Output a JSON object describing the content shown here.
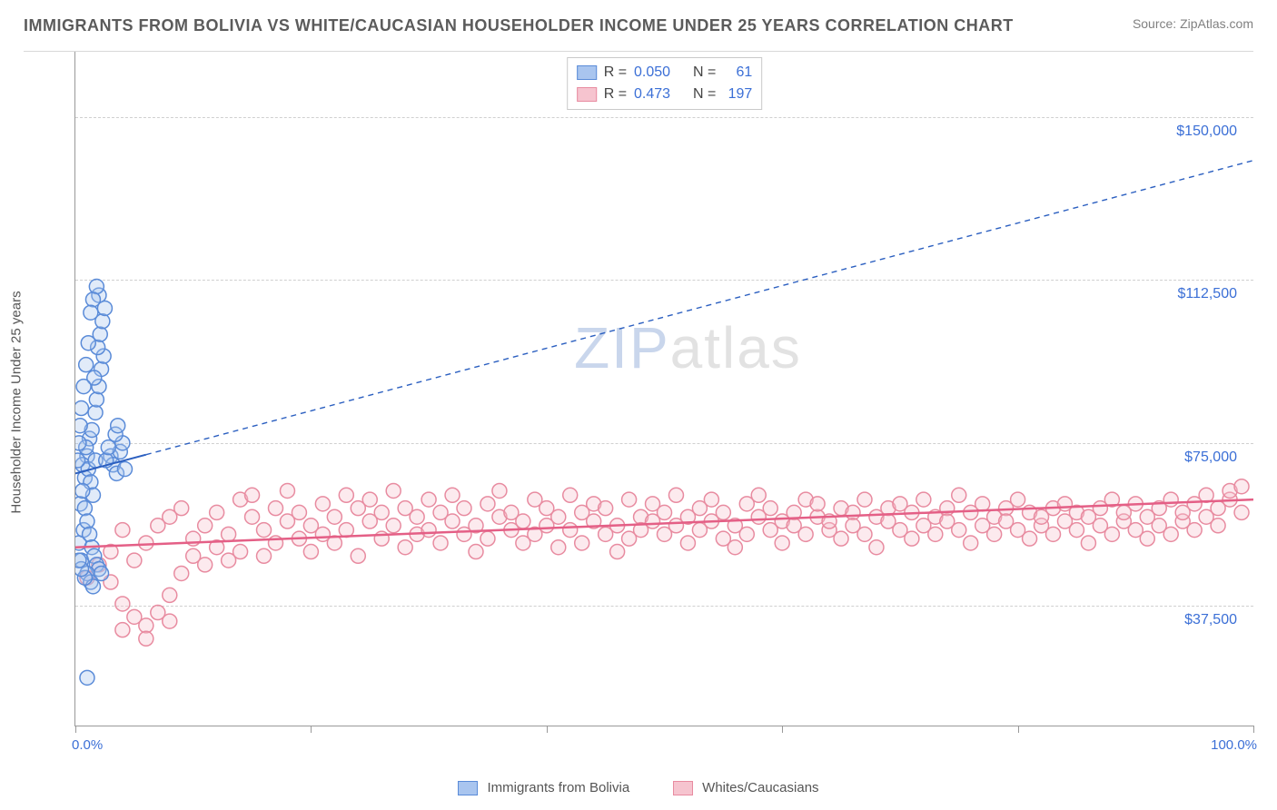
{
  "title": "IMMIGRANTS FROM BOLIVIA VS WHITE/CAUCASIAN HOUSEHOLDER INCOME UNDER 25 YEARS CORRELATION CHART",
  "source_label": "Source: ",
  "source_name": "ZipAtlas.com",
  "watermark_a": "ZIP",
  "watermark_b": "atlas",
  "chart": {
    "type": "scatter",
    "ylabel": "Householder Income Under 25 years",
    "xlim": [
      0,
      100
    ],
    "ylim": [
      10000,
      165000
    ],
    "yticks": [
      37500,
      75000,
      112500,
      150000
    ],
    "ytick_labels": [
      "$37,500",
      "$75,000",
      "$112,500",
      "$150,000"
    ],
    "xticks": [
      0,
      20,
      40,
      60,
      80,
      100
    ],
    "x_axis_left_label": "0.0%",
    "x_axis_right_label": "100.0%",
    "background_color": "#ffffff",
    "grid_color": "#d0d0d0",
    "marker_radius": 8,
    "marker_stroke_width": 1.5,
    "marker_fill_opacity": 0.35,
    "axis_label_color": "#3b6fd6",
    "series": [
      {
        "id": "bolivia",
        "name": "Immigrants from Bolivia",
        "fill": "#a9c5ef",
        "stroke": "#5a8bd8",
        "R": "0.050",
        "N": "61",
        "trend": {
          "x1": 0,
          "y1": 68000,
          "x2": 100,
          "y2": 140000,
          "solid_until_x": 6,
          "color": "#2b5fc0",
          "width": 2,
          "dash": "6 5"
        },
        "points": [
          [
            0.3,
            52000
          ],
          [
            0.5,
            48000
          ],
          [
            0.7,
            55000
          ],
          [
            0.4,
            61000
          ],
          [
            0.8,
            67000
          ],
          [
            1.0,
            72000
          ],
          [
            1.2,
            76000
          ],
          [
            0.6,
            70000
          ],
          [
            0.9,
            74000
          ],
          [
            1.1,
            69000
          ],
          [
            1.3,
            66000
          ],
          [
            1.5,
            63000
          ],
          [
            1.4,
            78000
          ],
          [
            1.7,
            82000
          ],
          [
            1.8,
            85000
          ],
          [
            2.0,
            88000
          ],
          [
            2.2,
            92000
          ],
          [
            2.4,
            95000
          ],
          [
            1.6,
            90000
          ],
          [
            1.9,
            97000
          ],
          [
            2.1,
            100000
          ],
          [
            2.3,
            103000
          ],
          [
            2.5,
            106000
          ],
          [
            2.0,
            109000
          ],
          [
            1.8,
            111000
          ],
          [
            1.5,
            108000
          ],
          [
            1.3,
            105000
          ],
          [
            1.1,
            98000
          ],
          [
            0.9,
            93000
          ],
          [
            0.7,
            88000
          ],
          [
            0.5,
            83000
          ],
          [
            0.4,
            79000
          ],
          [
            0.3,
            75000
          ],
          [
            0.2,
            71000
          ],
          [
            0.6,
            64000
          ],
          [
            0.8,
            60000
          ],
          [
            1.0,
            57000
          ],
          [
            1.2,
            54000
          ],
          [
            1.4,
            51000
          ],
          [
            1.6,
            49000
          ],
          [
            1.8,
            47000
          ],
          [
            2.0,
            46000
          ],
          [
            2.2,
            45000
          ],
          [
            1.0,
            45000
          ],
          [
            1.3,
            43000
          ],
          [
            1.5,
            42000
          ],
          [
            0.8,
            44000
          ],
          [
            0.5,
            46000
          ],
          [
            0.3,
            48000
          ],
          [
            3.0,
            72000
          ],
          [
            3.2,
            70000
          ],
          [
            3.5,
            68000
          ],
          [
            3.8,
            73000
          ],
          [
            4.0,
            75000
          ],
          [
            4.2,
            69000
          ],
          [
            1.0,
            21000
          ],
          [
            1.7,
            71000
          ],
          [
            2.6,
            71000
          ],
          [
            2.8,
            74000
          ],
          [
            3.4,
            77000
          ],
          [
            3.6,
            79000
          ]
        ]
      },
      {
        "id": "white",
        "name": "Whites/Caucasians",
        "fill": "#f6c4cf",
        "stroke": "#e88ba0",
        "R": "0.473",
        "N": "197",
        "trend": {
          "x1": 0,
          "y1": 51000,
          "x2": 100,
          "y2": 62000,
          "solid_until_x": 100,
          "color": "#e45f86",
          "width": 2.5,
          "dash": ""
        },
        "points": [
          [
            1,
            44000
          ],
          [
            2,
            47000
          ],
          [
            3,
            50000
          ],
          [
            3,
            43000
          ],
          [
            4,
            38000
          ],
          [
            4,
            55000
          ],
          [
            5,
            35000
          ],
          [
            5,
            48000
          ],
          [
            6,
            33000
          ],
          [
            6,
            52000
          ],
          [
            7,
            36000
          ],
          [
            7,
            56000
          ],
          [
            8,
            40000
          ],
          [
            8,
            58000
          ],
          [
            9,
            45000
          ],
          [
            9,
            60000
          ],
          [
            10,
            49000
          ],
          [
            10,
            53000
          ],
          [
            11,
            56000
          ],
          [
            11,
            47000
          ],
          [
            12,
            51000
          ],
          [
            12,
            59000
          ],
          [
            13,
            54000
          ],
          [
            13,
            48000
          ],
          [
            14,
            62000
          ],
          [
            14,
            50000
          ],
          [
            15,
            58000
          ],
          [
            15,
            63000
          ],
          [
            16,
            55000
          ],
          [
            16,
            49000
          ],
          [
            17,
            60000
          ],
          [
            17,
            52000
          ],
          [
            18,
            57000
          ],
          [
            18,
            64000
          ],
          [
            19,
            53000
          ],
          [
            19,
            59000
          ],
          [
            20,
            56000
          ],
          [
            20,
            50000
          ],
          [
            21,
            61000
          ],
          [
            21,
            54000
          ],
          [
            22,
            58000
          ],
          [
            22,
            52000
          ],
          [
            23,
            63000
          ],
          [
            23,
            55000
          ],
          [
            24,
            60000
          ],
          [
            24,
            49000
          ],
          [
            25,
            57000
          ],
          [
            25,
            62000
          ],
          [
            26,
            53000
          ],
          [
            26,
            59000
          ],
          [
            27,
            56000
          ],
          [
            27,
            64000
          ],
          [
            28,
            51000
          ],
          [
            28,
            60000
          ],
          [
            29,
            58000
          ],
          [
            29,
            54000
          ],
          [
            30,
            62000
          ],
          [
            30,
            55000
          ],
          [
            31,
            59000
          ],
          [
            31,
            52000
          ],
          [
            32,
            57000
          ],
          [
            32,
            63000
          ],
          [
            33,
            54000
          ],
          [
            33,
            60000
          ],
          [
            34,
            56000
          ],
          [
            34,
            50000
          ],
          [
            35,
            61000
          ],
          [
            35,
            53000
          ],
          [
            36,
            58000
          ],
          [
            36,
            64000
          ],
          [
            37,
            55000
          ],
          [
            37,
            59000
          ],
          [
            38,
            52000
          ],
          [
            38,
            57000
          ],
          [
            39,
            62000
          ],
          [
            39,
            54000
          ],
          [
            40,
            60000
          ],
          [
            40,
            56000
          ],
          [
            41,
            51000
          ],
          [
            41,
            58000
          ],
          [
            42,
            63000
          ],
          [
            42,
            55000
          ],
          [
            43,
            59000
          ],
          [
            43,
            52000
          ],
          [
            44,
            57000
          ],
          [
            44,
            61000
          ],
          [
            45,
            54000
          ],
          [
            45,
            60000
          ],
          [
            46,
            56000
          ],
          [
            46,
            50000
          ],
          [
            47,
            62000
          ],
          [
            47,
            53000
          ],
          [
            48,
            58000
          ],
          [
            48,
            55000
          ],
          [
            49,
            61000
          ],
          [
            49,
            57000
          ],
          [
            50,
            54000
          ],
          [
            50,
            59000
          ],
          [
            51,
            56000
          ],
          [
            51,
            63000
          ],
          [
            52,
            52000
          ],
          [
            52,
            58000
          ],
          [
            53,
            60000
          ],
          [
            53,
            55000
          ],
          [
            54,
            57000
          ],
          [
            54,
            62000
          ],
          [
            55,
            53000
          ],
          [
            55,
            59000
          ],
          [
            56,
            56000
          ],
          [
            56,
            51000
          ],
          [
            57,
            61000
          ],
          [
            57,
            54000
          ],
          [
            58,
            58000
          ],
          [
            58,
            63000
          ],
          [
            59,
            55000
          ],
          [
            59,
            60000
          ],
          [
            60,
            57000
          ],
          [
            60,
            52000
          ],
          [
            61,
            59000
          ],
          [
            61,
            56000
          ],
          [
            62,
            62000
          ],
          [
            62,
            54000
          ],
          [
            63,
            58000
          ],
          [
            63,
            61000
          ],
          [
            64,
            55000
          ],
          [
            64,
            57000
          ],
          [
            65,
            60000
          ],
          [
            65,
            53000
          ],
          [
            66,
            59000
          ],
          [
            66,
            56000
          ],
          [
            67,
            62000
          ],
          [
            67,
            54000
          ],
          [
            68,
            58000
          ],
          [
            68,
            51000
          ],
          [
            69,
            60000
          ],
          [
            69,
            57000
          ],
          [
            70,
            55000
          ],
          [
            70,
            61000
          ],
          [
            71,
            53000
          ],
          [
            71,
            59000
          ],
          [
            72,
            56000
          ],
          [
            72,
            62000
          ],
          [
            73,
            54000
          ],
          [
            73,
            58000
          ],
          [
            74,
            60000
          ],
          [
            74,
            57000
          ],
          [
            75,
            55000
          ],
          [
            75,
            63000
          ],
          [
            76,
            52000
          ],
          [
            76,
            59000
          ],
          [
            77,
            56000
          ],
          [
            77,
            61000
          ],
          [
            78,
            54000
          ],
          [
            78,
            58000
          ],
          [
            79,
            60000
          ],
          [
            79,
            57000
          ],
          [
            80,
            55000
          ],
          [
            80,
            62000
          ],
          [
            81,
            53000
          ],
          [
            81,
            59000
          ],
          [
            82,
            56000
          ],
          [
            82,
            58000
          ],
          [
            83,
            60000
          ],
          [
            83,
            54000
          ],
          [
            84,
            57000
          ],
          [
            84,
            61000
          ],
          [
            85,
            55000
          ],
          [
            85,
            59000
          ],
          [
            86,
            52000
          ],
          [
            86,
            58000
          ],
          [
            87,
            60000
          ],
          [
            87,
            56000
          ],
          [
            88,
            62000
          ],
          [
            88,
            54000
          ],
          [
            89,
            57000
          ],
          [
            89,
            59000
          ],
          [
            90,
            55000
          ],
          [
            90,
            61000
          ],
          [
            91,
            53000
          ],
          [
            91,
            58000
          ],
          [
            92,
            60000
          ],
          [
            92,
            56000
          ],
          [
            93,
            62000
          ],
          [
            93,
            54000
          ],
          [
            94,
            57000
          ],
          [
            94,
            59000
          ],
          [
            95,
            55000
          ],
          [
            95,
            61000
          ],
          [
            96,
            58000
          ],
          [
            96,
            63000
          ],
          [
            97,
            56000
          ],
          [
            97,
            60000
          ],
          [
            98,
            62000
          ],
          [
            98,
            64000
          ],
          [
            99,
            59000
          ],
          [
            99,
            65000
          ],
          [
            4,
            32000
          ],
          [
            6,
            30000
          ],
          [
            8,
            34000
          ]
        ]
      }
    ]
  },
  "legend_top_labels": {
    "R": "R =",
    "N": "N ="
  },
  "legend_bottom": [
    {
      "key": "bolivia",
      "label": "Immigrants from Bolivia"
    },
    {
      "key": "white",
      "label": "Whites/Caucasians"
    }
  ]
}
